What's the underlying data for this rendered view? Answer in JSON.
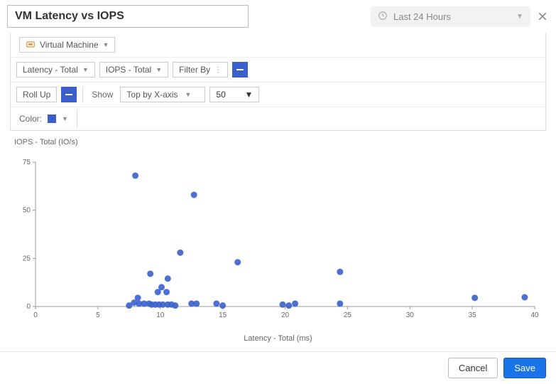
{
  "header": {
    "title": "VM Latency vs IOPS",
    "time_range": "Last 24 Hours"
  },
  "toolbar": {
    "object_type": "Virtual Machine",
    "x_metric": "Latency - Total",
    "y_metric": "IOPS - Total",
    "filter_label": "Filter By",
    "rollup_label": "Roll Up",
    "show_label": "Show",
    "show_mode": "Top by X-axis",
    "show_count": "50",
    "color_label": "Color:",
    "accent_color": "#3a5fcd"
  },
  "chart": {
    "type": "scatter",
    "x_label": "Latency - Total (ms)",
    "y_label": "IOPS - Total (IO/s)",
    "xlim": [
      0,
      40
    ],
    "ylim": [
      0,
      75
    ],
    "xticks": [
      0,
      5,
      10,
      15,
      20,
      25,
      30,
      35,
      40
    ],
    "yticks": [
      0,
      25,
      50,
      75
    ],
    "marker_radius": 4.5,
    "marker_color": "#3a5fcd",
    "marker_opacity": 0.9,
    "axis_color": "#999999",
    "tick_font_size": 10,
    "label_font_size": 11,
    "background_color": "#ffffff",
    "points": [
      [
        8.0,
        68
      ],
      [
        12.7,
        58
      ],
      [
        11.6,
        28
      ],
      [
        16.2,
        23
      ],
      [
        24.4,
        18
      ],
      [
        9.2,
        17
      ],
      [
        10.6,
        14.5
      ],
      [
        10.1,
        10
      ],
      [
        9.8,
        7.5
      ],
      [
        10.5,
        7.5
      ],
      [
        39.2,
        4.8
      ],
      [
        35.2,
        4.5
      ],
      [
        8.2,
        4.5
      ],
      [
        7.9,
        2
      ],
      [
        8.3,
        1.5
      ],
      [
        8.7,
        1.5
      ],
      [
        9.1,
        1.5
      ],
      [
        9.3,
        1
      ],
      [
        9.6,
        1
      ],
      [
        9.9,
        1
      ],
      [
        10.2,
        1
      ],
      [
        10.6,
        1
      ],
      [
        10.9,
        1
      ],
      [
        11.2,
        0.5
      ],
      [
        7.5,
        0.5
      ],
      [
        12.5,
        1.5
      ],
      [
        12.9,
        1.5
      ],
      [
        14.5,
        1.5
      ],
      [
        15.0,
        0.5
      ],
      [
        19.8,
        1
      ],
      [
        20.3,
        0.5
      ],
      [
        20.8,
        1.5
      ],
      [
        24.4,
        1.5
      ]
    ]
  },
  "footer": {
    "cancel": "Cancel",
    "save": "Save"
  }
}
